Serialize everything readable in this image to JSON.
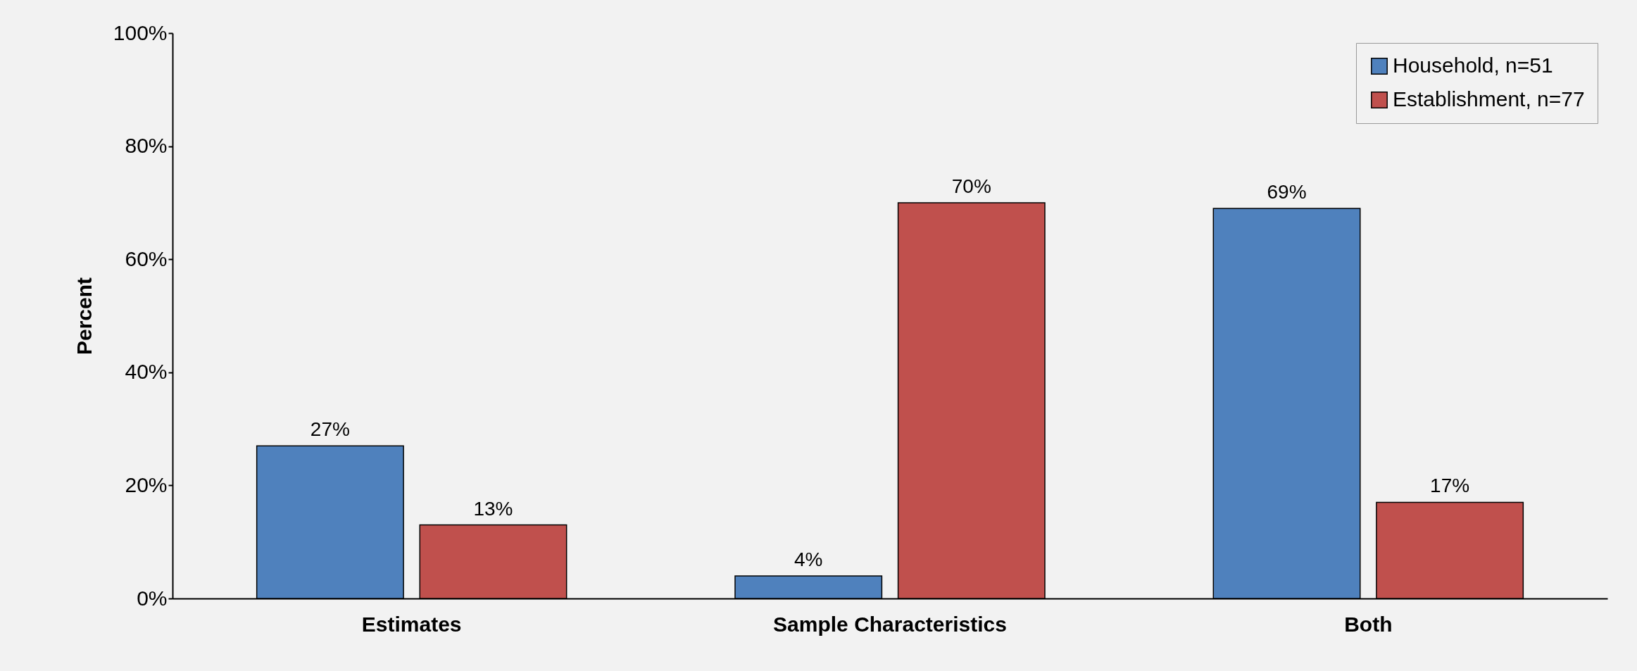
{
  "chart_data": {
    "type": "bar",
    "ylabel": "Percent",
    "categories": [
      "Estimates",
      "Sample Characteristics",
      "Both"
    ],
    "series": [
      {
        "name": "Household, n=51",
        "color": "#4f81bd",
        "values": [
          27,
          4,
          69
        ],
        "value_labels": [
          "27%",
          "4%",
          "69%"
        ]
      },
      {
        "name": "Establishment, n=77",
        "color": "#c0504d",
        "values": [
          13,
          70,
          17
        ],
        "value_labels": [
          "13%",
          "70%",
          "17%"
        ]
      }
    ],
    "ylim": [
      0,
      100
    ],
    "yticks": [
      {
        "value": 0,
        "label": "0%"
      },
      {
        "value": 20,
        "label": "20%"
      },
      {
        "value": 40,
        "label": "40%"
      },
      {
        "value": 60,
        "label": "60%"
      },
      {
        "value": 80,
        "label": "80%"
      },
      {
        "value": 100,
        "label": "100%"
      }
    ],
    "legend": "top right"
  }
}
